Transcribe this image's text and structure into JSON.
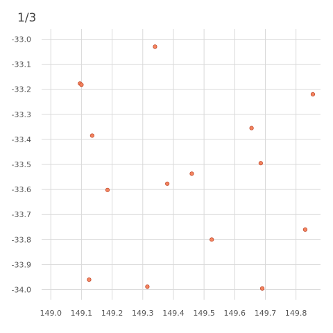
{
  "chart_data": {
    "type": "scatter",
    "title": "1/3",
    "xlabel": "",
    "ylabel": "",
    "xlim": [
      148.97,
      149.88
    ],
    "ylim": [
      -34.04,
      -32.96
    ],
    "x_ticks": [
      149.0,
      149.1,
      149.2,
      149.3,
      149.4,
      149.5,
      149.6,
      149.7,
      149.8
    ],
    "x_tick_labels": [
      "149.0",
      "149.1",
      "149.2",
      "149.3",
      "149.4",
      "149.5",
      "149.6",
      "149.7",
      "149.8"
    ],
    "y_ticks": [
      -33.0,
      -33.1,
      -33.2,
      -33.3,
      -33.4,
      -33.5,
      -33.6,
      -33.7,
      -33.8,
      -33.9,
      -34.0
    ],
    "y_tick_labels": [
      "-33.0",
      "-33.1",
      "-33.2",
      "-33.3",
      "-33.4",
      "-33.5",
      "-33.6",
      "-33.7",
      "-33.8",
      "-33.9",
      "-34.0"
    ],
    "grid": true,
    "point_color": "#f4845f",
    "point_stroke": "#c0482b",
    "grid_color": "#d9d9d9",
    "points": [
      {
        "x": 149.34,
        "y": -33.03
      },
      {
        "x": 149.095,
        "y": -33.177
      },
      {
        "x": 149.1,
        "y": -33.182
      },
      {
        "x": 149.855,
        "y": -33.22
      },
      {
        "x": 149.655,
        "y": -33.355
      },
      {
        "x": 149.135,
        "y": -33.385
      },
      {
        "x": 149.685,
        "y": -33.495
      },
      {
        "x": 149.46,
        "y": -33.537
      },
      {
        "x": 149.38,
        "y": -33.577
      },
      {
        "x": 149.185,
        "y": -33.602
      },
      {
        "x": 149.83,
        "y": -33.76
      },
      {
        "x": 149.525,
        "y": -33.8
      },
      {
        "x": 149.125,
        "y": -33.96
      },
      {
        "x": 149.315,
        "y": -33.988
      },
      {
        "x": 149.69,
        "y": -33.995
      }
    ]
  }
}
